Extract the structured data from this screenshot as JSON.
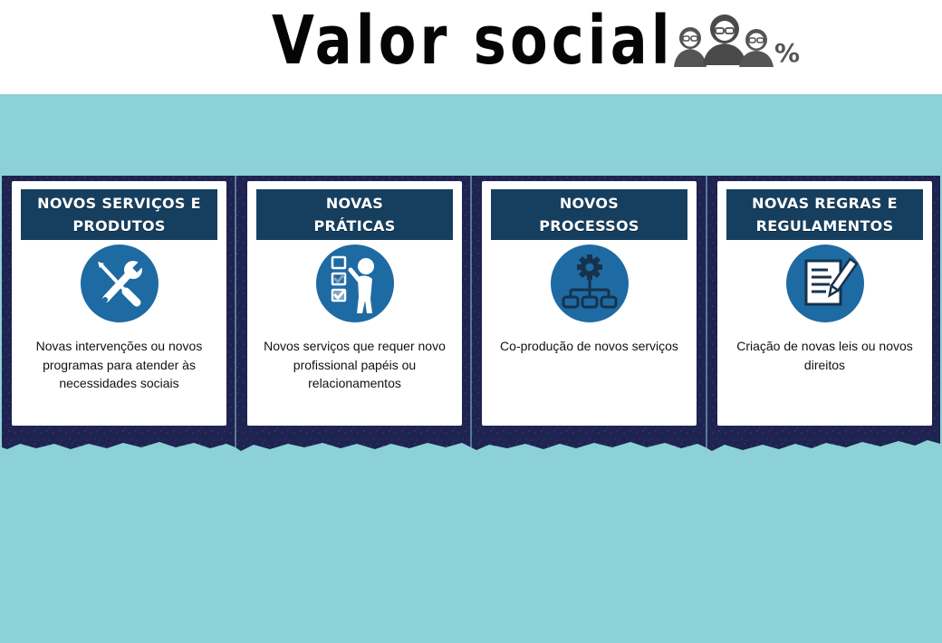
{
  "header": {
    "title": "Valor social",
    "percent_symbol": "%",
    "icon": "people-percent-icon"
  },
  "colors": {
    "background_panel": "#8cd1d6",
    "card_strip": "#1e2350",
    "title_bar": "#163f5f",
    "icon_circle": "#1e6aa3"
  },
  "cards": [
    {
      "title": "NOVOS SERVIÇOS E\nPRODUTOS",
      "icon": "tools-icon",
      "text": "Novas intervenções ou novos programas para atender às necessidades sociais"
    },
    {
      "title": "NOVAS\nPRÁTICAS",
      "icon": "checklist-person-icon",
      "text": "Novos serviços que requer novo profissional papéis ou relacionamentos"
    },
    {
      "title": "NOVOS\nPROCESSOS",
      "icon": "gear-flowchart-icon",
      "text": "Co-produção de novos serviços"
    },
    {
      "title": "NOVAS REGRAS E\nREGULAMENTOS",
      "icon": "document-pen-icon",
      "text": "Criação de novas leis ou novos direitos"
    }
  ]
}
